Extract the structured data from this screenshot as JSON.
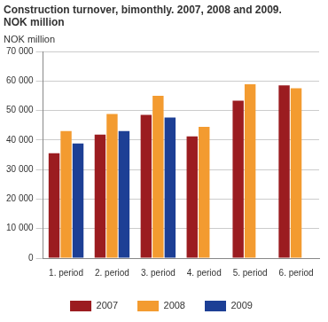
{
  "chart_data": {
    "type": "bar",
    "title": [
      "Construction turnover, bimonthly. 2007, 2008 and 2009.",
      "NOK million"
    ],
    "ylabel": "NOK million",
    "categories": [
      "1. period",
      "2. period",
      "3. period",
      "4. period",
      "5. period",
      "6. period"
    ],
    "series": [
      {
        "name": "2007",
        "color": "#9b1c20",
        "values": [
          35500,
          41800,
          48500,
          41200,
          53300,
          58500
        ]
      },
      {
        "name": "2008",
        "color": "#f39b30",
        "values": [
          43000,
          48800,
          55000,
          44500,
          58900,
          57500
        ]
      },
      {
        "name": "2009",
        "color": "#1d3f95",
        "values": [
          38800,
          43000,
          47600,
          null,
          null,
          null
        ]
      }
    ],
    "ylim": [
      0,
      70000
    ],
    "yticks": [
      {
        "value": 0,
        "label": "0"
      },
      {
        "value": 10000,
        "label": "10 000"
      },
      {
        "value": 20000,
        "label": "20 000"
      },
      {
        "value": 30000,
        "label": "30 000"
      },
      {
        "value": 40000,
        "label": "40 000"
      },
      {
        "value": 50000,
        "label": "50 000"
      },
      {
        "value": 60000,
        "label": "60 000"
      },
      {
        "value": 70000,
        "label": "70 000"
      }
    ],
    "grid": true,
    "legend": "bottom"
  }
}
